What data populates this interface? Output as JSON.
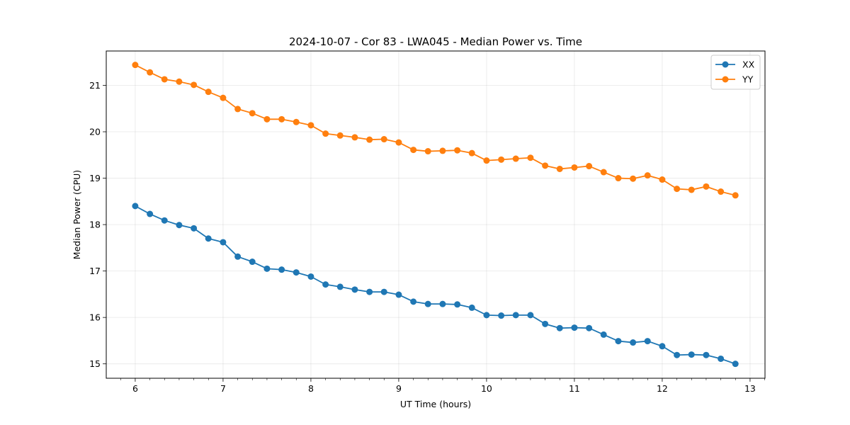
{
  "chart_data": {
    "type": "line",
    "title": "2024-10-07 - Cor 83 - LWA045 - Median Power vs. Time",
    "xlabel": "UT Time (hours)",
    "ylabel": "Median Power (CPU)",
    "xlim": [
      5.67,
      13.17
    ],
    "ylim": [
      14.69,
      21.74
    ],
    "xticks": [
      6,
      7,
      8,
      9,
      10,
      11,
      12,
      13
    ],
    "yticks": [
      15,
      16,
      17,
      18,
      19,
      20,
      21
    ],
    "grid": true,
    "legend_position": "top-right",
    "x": [
      6.0,
      6.167,
      6.333,
      6.5,
      6.667,
      6.833,
      7.0,
      7.167,
      7.333,
      7.5,
      7.667,
      7.833,
      8.0,
      8.167,
      8.333,
      8.5,
      8.667,
      8.833,
      9.0,
      9.167,
      9.333,
      9.5,
      9.667,
      9.833,
      10.0,
      10.167,
      10.333,
      10.5,
      10.667,
      10.833,
      11.0,
      11.167,
      11.333,
      11.5,
      11.667,
      11.833,
      12.0,
      12.167,
      12.333,
      12.5,
      12.667,
      12.833
    ],
    "series": [
      {
        "name": "XX",
        "color": "#1f77b4",
        "values": [
          18.4,
          18.23,
          18.09,
          17.99,
          17.92,
          17.7,
          17.62,
          17.31,
          17.2,
          17.05,
          17.03,
          16.97,
          16.88,
          16.71,
          16.66,
          16.6,
          16.55,
          16.55,
          16.49,
          16.34,
          16.29,
          16.29,
          16.28,
          16.21,
          16.05,
          16.04,
          16.05,
          16.05,
          15.86,
          15.77,
          15.78,
          15.77,
          15.63,
          15.49,
          15.46,
          15.49,
          15.38,
          15.19,
          15.2,
          15.19,
          15.11,
          15.0
        ]
      },
      {
        "name": "YY",
        "color": "#ff7f0e",
        "values": [
          21.44,
          21.28,
          21.13,
          21.08,
          21.01,
          20.86,
          20.73,
          20.49,
          20.4,
          20.27,
          20.27,
          20.21,
          20.14,
          19.96,
          19.92,
          19.88,
          19.83,
          19.84,
          19.77,
          19.61,
          19.58,
          19.59,
          19.6,
          19.54,
          19.38,
          19.4,
          19.42,
          19.44,
          19.27,
          19.2,
          19.23,
          19.26,
          19.13,
          19.0,
          18.99,
          19.06,
          18.97,
          18.77,
          18.75,
          18.82,
          18.71,
          18.63
        ]
      }
    ]
  }
}
